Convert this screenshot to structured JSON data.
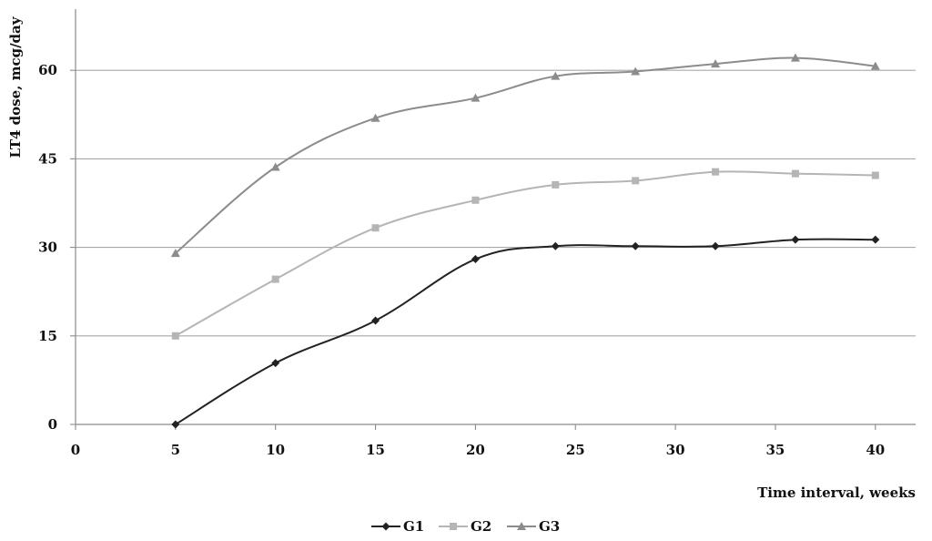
{
  "chart_data": {
    "type": "line",
    "title": "",
    "xlabel": "Time interval, weeks",
    "ylabel": "LT4 dose, mcg/day",
    "xlim": [
      0,
      42
    ],
    "ylim": [
      0,
      70
    ],
    "x_ticks": [
      0,
      5,
      10,
      15,
      20,
      25,
      30,
      35,
      40
    ],
    "y_ticks": [
      0,
      15,
      30,
      45,
      60
    ],
    "grid": "horizontal",
    "legend_position": "bottom",
    "x": [
      5,
      10,
      15,
      20,
      24,
      28,
      32,
      36,
      40
    ],
    "series": [
      {
        "name": "G1",
        "marker": "diamond",
        "color": "#222222",
        "values": [
          0,
          10.4,
          17.6,
          28,
          30.2,
          30.2,
          30.2,
          31.3,
          31.3
        ]
      },
      {
        "name": "G2",
        "marker": "square",
        "color": "#b5b5b5",
        "values": [
          15,
          24.6,
          33.3,
          38,
          40.6,
          41.3,
          42.8,
          42.5,
          42.2
        ]
      },
      {
        "name": "G3",
        "marker": "triangle",
        "color": "#8c8c8c",
        "values": [
          29,
          43.6,
          51.9,
          55.3,
          59,
          59.8,
          61.1,
          62.1,
          60.7
        ]
      }
    ]
  }
}
